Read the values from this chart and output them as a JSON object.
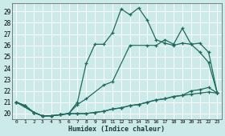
{
  "xlabel": "Humidex (Indice chaleur)",
  "bg_color": "#cceaea",
  "grid_color": "#b8d8d8",
  "line_color": "#1e6b5e",
  "xlim": [
    -0.5,
    23.5
  ],
  "ylim": [
    19.5,
    29.7
  ],
  "yticks": [
    20,
    21,
    22,
    23,
    24,
    25,
    26,
    27,
    28,
    29
  ],
  "xticks": [
    0,
    1,
    2,
    3,
    4,
    5,
    6,
    7,
    8,
    9,
    10,
    11,
    12,
    13,
    14,
    15,
    16,
    17,
    18,
    19,
    20,
    21,
    22,
    23
  ],
  "line1_x": [
    0,
    1,
    2,
    3,
    4,
    5,
    6,
    7,
    8,
    9,
    10,
    11,
    12,
    13,
    14,
    15,
    16,
    17,
    18,
    19,
    20,
    21,
    22,
    23
  ],
  "line1_y": [
    21.0,
    20.7,
    20.1,
    19.8,
    19.8,
    19.9,
    20.0,
    20.0,
    20.0,
    20.1,
    20.2,
    20.4,
    20.5,
    20.7,
    20.8,
    21.0,
    21.2,
    21.3,
    21.5,
    21.6,
    21.7,
    21.8,
    21.9,
    21.8
  ],
  "line2_x": [
    0,
    2,
    3,
    4,
    5,
    6,
    7,
    8,
    10,
    11,
    13,
    15,
    16,
    17,
    18,
    19,
    20,
    21,
    22,
    23
  ],
  "line2_y": [
    21.0,
    20.1,
    19.8,
    19.8,
    19.9,
    20.0,
    20.8,
    21.3,
    22.5,
    22.8,
    26.0,
    26.0,
    26.0,
    26.5,
    26.1,
    27.5,
    26.1,
    26.2,
    25.4,
    21.8
  ],
  "line3_x": [
    0,
    1,
    2,
    3,
    4,
    5,
    6,
    7,
    8,
    9,
    10,
    11,
    12,
    13,
    14,
    15,
    16,
    17,
    18,
    19,
    20,
    21,
    22,
    23
  ],
  "line3_y": [
    21.0,
    20.7,
    20.1,
    19.8,
    19.8,
    19.9,
    20.0,
    20.0,
    20.0,
    20.1,
    20.2,
    20.4,
    20.5,
    20.7,
    20.8,
    21.0,
    21.2,
    21.3,
    21.5,
    21.6,
    22.0,
    22.1,
    22.3,
    21.8
  ],
  "line_top_x": [
    0,
    1,
    2,
    3,
    4,
    5,
    6,
    7,
    8,
    9,
    10,
    11,
    12,
    13,
    14,
    15,
    16,
    17,
    18,
    19,
    20,
    21,
    22,
    23
  ],
  "line_top_y": [
    21.0,
    20.7,
    20.1,
    19.8,
    19.8,
    19.9,
    20.0,
    21.0,
    24.4,
    26.1,
    26.1,
    27.1,
    29.2,
    28.7,
    29.3,
    28.2,
    26.5,
    26.2,
    26.0,
    26.2,
    26.1,
    25.4,
    24.5,
    21.8
  ]
}
